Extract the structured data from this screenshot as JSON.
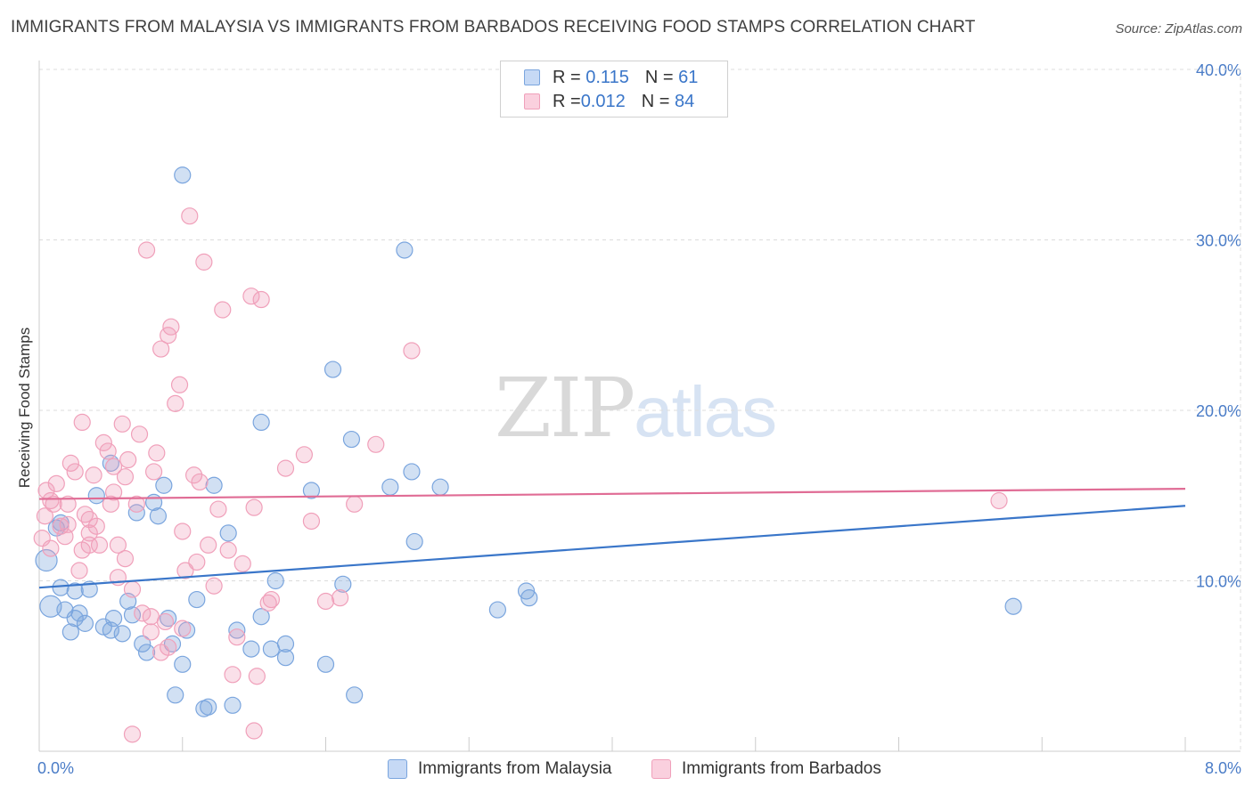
{
  "title": "IMMIGRANTS FROM MALAYSIA VS IMMIGRANTS FROM BARBADOS RECEIVING FOOD STAMPS CORRELATION CHART",
  "source": "Source: ZipAtlas.com",
  "watermark": {
    "zip": "ZIP",
    "atlas": "atlas"
  },
  "legend": {
    "rows": [
      {
        "r_label": "R = ",
        "r_value": "0.115",
        "n_label": "N = ",
        "n_value": "61"
      },
      {
        "r_label": "R = ",
        "r_value": "0.012",
        "n_label": "N = ",
        "n_value": "84"
      }
    ]
  },
  "chart_data": {
    "type": "scatter",
    "xlabel": "",
    "ylabel": "Receiving Food Stamps",
    "xlim": [
      0.0,
      8.0
    ],
    "ylim": [
      0.0,
      40.0
    ],
    "x_tick_labels": [
      "0.0%",
      "8.0%"
    ],
    "y_ticks": [
      10,
      20,
      30,
      40
    ],
    "y_tick_labels": [
      "10.0%",
      "20.0%",
      "30.0%",
      "40.0%"
    ],
    "grid": true,
    "colors": {
      "malaysia": "#7aa5de",
      "barbados": "#f0a0ba",
      "malaysia_line": "#3a76c9",
      "barbados_line": "#e06c95"
    },
    "series": [
      {
        "name": "Immigrants from Malaysia",
        "r": 0.115,
        "n": 61,
        "trend": {
          "x": [
            0.0,
            8.0
          ],
          "y": [
            9.6,
            14.4
          ]
        },
        "points": [
          [
            0.05,
            11.2
          ],
          [
            0.08,
            8.5
          ],
          [
            0.15,
            13.4
          ],
          [
            0.15,
            9.6
          ],
          [
            0.18,
            8.3
          ],
          [
            0.22,
            7.0
          ],
          [
            0.25,
            7.8
          ],
          [
            0.28,
            8.1
          ],
          [
            0.32,
            7.5
          ],
          [
            0.35,
            9.5
          ],
          [
            0.4,
            15.0
          ],
          [
            0.45,
            7.3
          ],
          [
            0.5,
            7.1
          ],
          [
            0.5,
            16.9
          ],
          [
            0.52,
            7.8
          ],
          [
            0.58,
            6.9
          ],
          [
            0.62,
            8.8
          ],
          [
            0.65,
            8.0
          ],
          [
            0.68,
            14.0
          ],
          [
            0.72,
            6.3
          ],
          [
            0.75,
            5.8
          ],
          [
            0.8,
            14.6
          ],
          [
            0.83,
            13.8
          ],
          [
            0.87,
            15.6
          ],
          [
            0.9,
            7.8
          ],
          [
            0.93,
            6.3
          ],
          [
            0.95,
            3.3
          ],
          [
            1.0,
            33.8
          ],
          [
            1.0,
            5.1
          ],
          [
            1.03,
            7.1
          ],
          [
            1.1,
            8.9
          ],
          [
            1.15,
            2.5
          ],
          [
            1.18,
            2.6
          ],
          [
            1.22,
            15.6
          ],
          [
            1.32,
            12.8
          ],
          [
            1.35,
            2.7
          ],
          [
            1.38,
            7.1
          ],
          [
            1.48,
            6.0
          ],
          [
            1.55,
            7.9
          ],
          [
            1.55,
            19.3
          ],
          [
            1.62,
            6.0
          ],
          [
            1.65,
            10.0
          ],
          [
            1.72,
            5.5
          ],
          [
            1.72,
            6.3
          ],
          [
            1.9,
            15.3
          ],
          [
            2.0,
            5.1
          ],
          [
            2.05,
            22.4
          ],
          [
            2.12,
            9.8
          ],
          [
            2.18,
            18.3
          ],
          [
            2.2,
            3.3
          ],
          [
            2.45,
            15.5
          ],
          [
            2.55,
            29.4
          ],
          [
            2.6,
            16.4
          ],
          [
            2.62,
            12.3
          ],
          [
            2.8,
            15.5
          ],
          [
            3.2,
            8.3
          ],
          [
            3.4,
            9.4
          ],
          [
            3.42,
            9.0
          ],
          [
            6.8,
            8.5
          ],
          [
            0.12,
            13.1
          ],
          [
            0.25,
            9.4
          ]
        ]
      },
      {
        "name": "Immigrants from Barbados",
        "r": 0.012,
        "n": 84,
        "trend": {
          "x": [
            0.0,
            8.0
          ],
          "y": [
            14.8,
            15.4
          ]
        },
        "points": [
          [
            0.02,
            12.5
          ],
          [
            0.04,
            13.8
          ],
          [
            0.05,
            15.3
          ],
          [
            0.08,
            11.9
          ],
          [
            0.1,
            14.5
          ],
          [
            0.12,
            15.7
          ],
          [
            0.15,
            13.2
          ],
          [
            0.18,
            12.6
          ],
          [
            0.2,
            14.5
          ],
          [
            0.22,
            16.9
          ],
          [
            0.25,
            16.4
          ],
          [
            0.28,
            10.6
          ],
          [
            0.3,
            19.3
          ],
          [
            0.32,
            13.9
          ],
          [
            0.35,
            12.8
          ],
          [
            0.38,
            16.2
          ],
          [
            0.4,
            13.2
          ],
          [
            0.42,
            12.1
          ],
          [
            0.45,
            18.1
          ],
          [
            0.48,
            17.6
          ],
          [
            0.5,
            14.5
          ],
          [
            0.52,
            15.2
          ],
          [
            0.55,
            10.2
          ],
          [
            0.58,
            19.2
          ],
          [
            0.6,
            16.1
          ],
          [
            0.62,
            17.1
          ],
          [
            0.65,
            9.5
          ],
          [
            0.68,
            14.5
          ],
          [
            0.7,
            18.6
          ],
          [
            0.72,
            8.1
          ],
          [
            0.75,
            29.4
          ],
          [
            0.78,
            7.9
          ],
          [
            0.8,
            16.4
          ],
          [
            0.82,
            17.5
          ],
          [
            0.85,
            23.6
          ],
          [
            0.88,
            7.6
          ],
          [
            0.9,
            24.4
          ],
          [
            0.92,
            24.9
          ],
          [
            0.95,
            20.4
          ],
          [
            0.98,
            21.5
          ],
          [
            1.0,
            12.9
          ],
          [
            1.02,
            10.6
          ],
          [
            1.05,
            31.4
          ],
          [
            1.08,
            16.2
          ],
          [
            1.1,
            11.1
          ],
          [
            1.12,
            15.8
          ],
          [
            1.15,
            28.7
          ],
          [
            1.18,
            12.1
          ],
          [
            1.22,
            9.7
          ],
          [
            1.25,
            14.2
          ],
          [
            1.28,
            25.9
          ],
          [
            1.32,
            11.8
          ],
          [
            1.35,
            4.5
          ],
          [
            1.38,
            6.7
          ],
          [
            1.42,
            11.0
          ],
          [
            1.48,
            26.7
          ],
          [
            1.5,
            14.3
          ],
          [
            1.52,
            4.4
          ],
          [
            1.55,
            26.5
          ],
          [
            1.6,
            8.7
          ],
          [
            1.62,
            8.9
          ],
          [
            1.72,
            16.6
          ],
          [
            1.85,
            17.4
          ],
          [
            1.9,
            13.5
          ],
          [
            2.0,
            8.8
          ],
          [
            2.1,
            9.0
          ],
          [
            2.2,
            14.5
          ],
          [
            2.35,
            18.0
          ],
          [
            2.6,
            23.5
          ],
          [
            6.7,
            14.7
          ],
          [
            0.65,
            1.0
          ],
          [
            1.5,
            1.2
          ],
          [
            0.35,
            12.1
          ],
          [
            0.3,
            11.8
          ],
          [
            0.2,
            13.3
          ],
          [
            0.08,
            14.7
          ],
          [
            0.52,
            16.7
          ],
          [
            0.6,
            11.3
          ],
          [
            0.78,
            7.0
          ],
          [
            0.85,
            5.8
          ],
          [
            0.9,
            6.1
          ],
          [
            1.0,
            7.2
          ],
          [
            0.55,
            12.1
          ],
          [
            0.35,
            13.6
          ]
        ]
      }
    ]
  },
  "bottom_legend": [
    "Immigrants from Malaysia",
    "Immigrants from Barbados"
  ]
}
